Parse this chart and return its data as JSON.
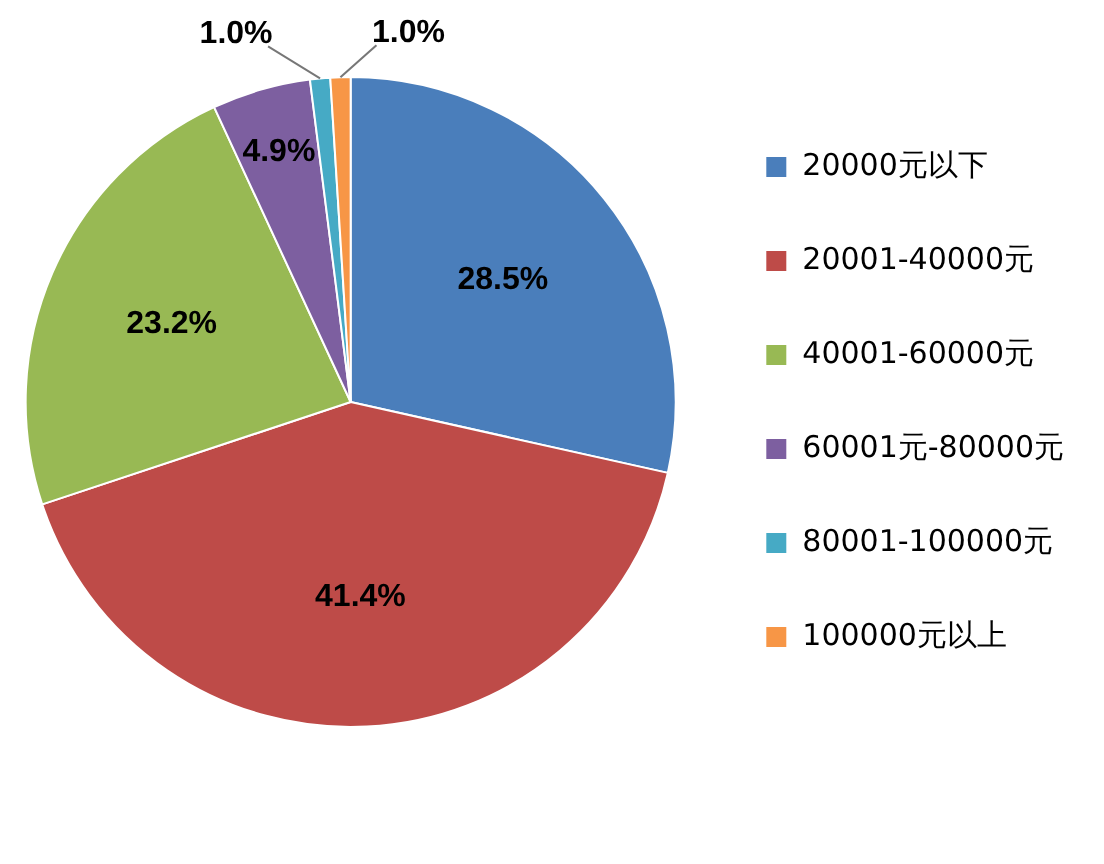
{
  "chart_data": {
    "type": "pie",
    "categories": [
      "20000元以下",
      "20001-40000元",
      "40001-60000元",
      "60001元-80000元",
      "80001-100000元",
      "100000元以上"
    ],
    "values": [
      28.5,
      41.4,
      23.2,
      4.9,
      1.0,
      1.0
    ],
    "colors": [
      "#4a7ebb",
      "#be4b48",
      "#98b954",
      "#7d5fa0",
      "#46aac5",
      "#f79646"
    ],
    "value_labels": [
      "28.5%",
      "41.4%",
      "23.2%",
      "4.9%",
      "1.0%",
      "1.0%"
    ],
    "legend": "right"
  }
}
